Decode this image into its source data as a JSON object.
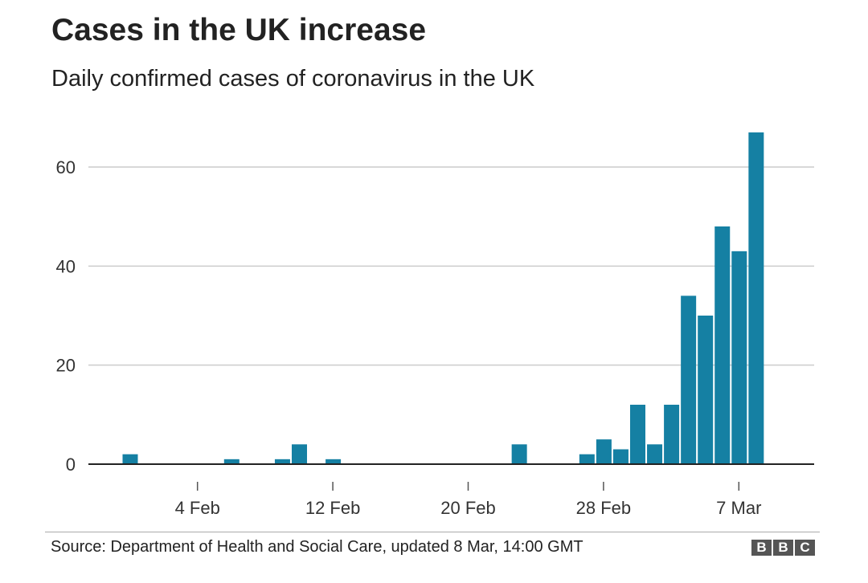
{
  "title": "Cases in the UK increase",
  "subtitle": "Daily confirmed cases of coronavirus in the UK",
  "source": "Source: Department of Health and Social Care, updated 8 Mar, 14:00 GMT",
  "logo": [
    "B",
    "B",
    "C"
  ],
  "colors": {
    "bar": "#1580a3",
    "grid": "#cccccc",
    "axis": "#222222",
    "text": "#222222"
  },
  "chart_data": {
    "type": "bar",
    "title": "Cases in the UK increase",
    "subtitle": "Daily confirmed cases of coronavirus in the UK",
    "xlabel": "",
    "ylabel": "",
    "ylim": [
      0,
      70
    ],
    "yticks": [
      0,
      20,
      40,
      60
    ],
    "grid": true,
    "xticks": [
      {
        "label": "4 Feb",
        "day": 4
      },
      {
        "label": "12 Feb",
        "day": 12
      },
      {
        "label": "20 Feb",
        "day": 20
      },
      {
        "label": "28 Feb",
        "day": 28
      },
      {
        "label": "7 Mar",
        "day": 36
      }
    ],
    "series": [
      {
        "name": "Daily confirmed cases",
        "bars": [
          {
            "date": "31 Jan",
            "day": 0,
            "value": 2
          },
          {
            "date": "6 Feb",
            "day": 6,
            "value": 1
          },
          {
            "date": "9 Feb",
            "day": 9,
            "value": 1
          },
          {
            "date": "10 Feb",
            "day": 10,
            "value": 4
          },
          {
            "date": "11 Feb",
            "day": 11,
            "value": 0
          },
          {
            "date": "12 Feb",
            "day": 12,
            "value": 1
          },
          {
            "date": "23 Feb",
            "day": 23,
            "value": 4
          },
          {
            "date": "27 Feb",
            "day": 27,
            "value": 2
          },
          {
            "date": "28 Feb",
            "day": 28,
            "value": 5
          },
          {
            "date": "29 Feb",
            "day": 29,
            "value": 3
          },
          {
            "date": "1 Mar",
            "day": 30,
            "value": 12
          },
          {
            "date": "2 Mar",
            "day": 31,
            "value": 4
          },
          {
            "date": "3 Mar",
            "day": 32,
            "value": 12
          },
          {
            "date": "4 Mar",
            "day": 33,
            "value": 34
          },
          {
            "date": "5 Mar",
            "day": 34,
            "value": 30
          },
          {
            "date": "6 Mar",
            "day": 35,
            "value": 48
          },
          {
            "date": "7 Mar",
            "day": 36,
            "value": 43
          },
          {
            "date": "8 Mar",
            "day": 37,
            "value": 67
          }
        ]
      }
    ]
  }
}
